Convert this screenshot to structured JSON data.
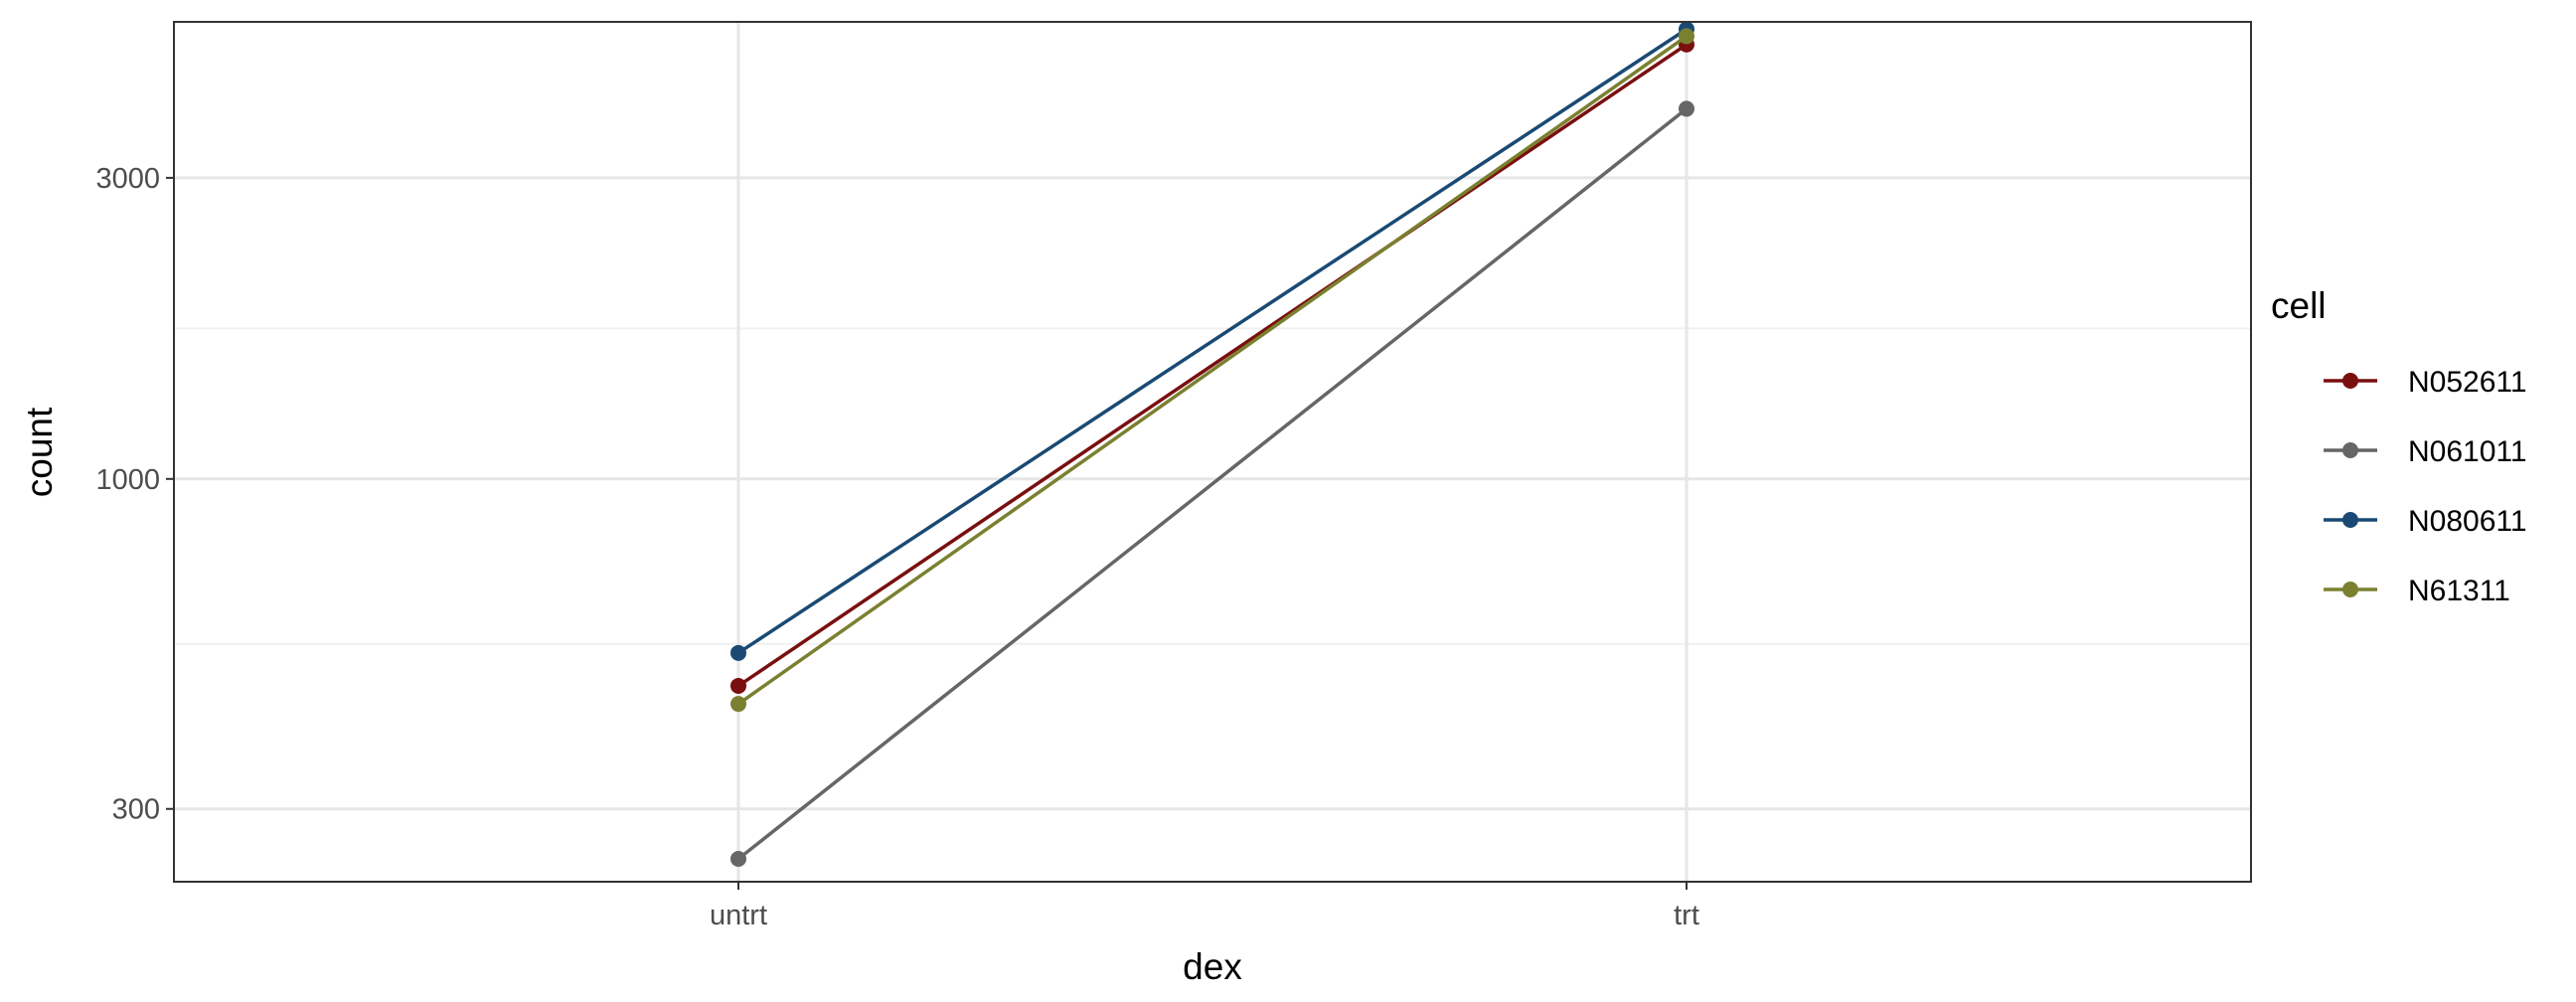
{
  "chart_data": {
    "type": "line",
    "xlabel": "dex",
    "ylabel": "count",
    "categories": [
      "untrt",
      "trt"
    ],
    "y_scale": "log10",
    "ylim": [
      230,
      5300
    ],
    "y_ticks": [
      300,
      1000,
      3000
    ],
    "y_tick_labels": [
      "300",
      "1000",
      "3000"
    ],
    "grid": true,
    "legend": {
      "title": "cell",
      "position": "right"
    },
    "series": [
      {
        "name": "N052611",
        "color": "#7a0f0f",
        "values": [
          470,
          4880
        ]
      },
      {
        "name": "N061011",
        "color": "#666666",
        "values": [
          250,
          3860
        ]
      },
      {
        "name": "N080611",
        "color": "#1a4a73",
        "values": [
          530,
          5160
        ]
      },
      {
        "name": "N61311",
        "color": "#7a8030",
        "values": [
          440,
          5030
        ]
      }
    ]
  }
}
